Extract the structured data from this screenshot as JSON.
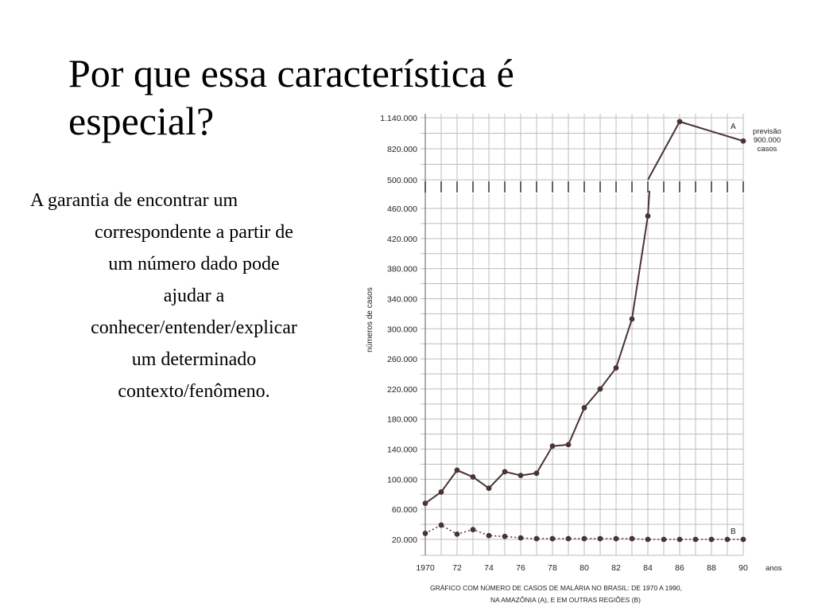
{
  "slide": {
    "title_line1": "Por que essa característica é",
    "title_line2": "especial?",
    "bullet_first": "A garantia de encontrar um",
    "bullet_lines": [
      "correspondente a partir de",
      "um número dado pode",
      "ajudar a",
      "conhecer/entender/explicar",
      "um determinado",
      "contexto/fenômeno."
    ]
  },
  "chart_data": {
    "type": "line",
    "ylabel": "números de casos",
    "x_unit_label": "anos",
    "x_tick_labels": [
      "1970",
      "72",
      "74",
      "76",
      "78",
      "80",
      "82",
      "84",
      "86",
      "88",
      "90"
    ],
    "y_tick_labels_top": [
      "1.140.000",
      "820.000",
      "500.000"
    ],
    "y_tick_labels_main": [
      "460.000",
      "420.000",
      "380.000",
      "340.000",
      "300.000",
      "260.000",
      "220.000",
      "180.000",
      "140.000",
      "100.000",
      "60.000",
      "20.000"
    ],
    "ylim_main": [
      20000,
      460000
    ],
    "ylim_top": [
      500000,
      1140000
    ],
    "axis_break_at": 500000,
    "xlim": [
      1970,
      1990
    ],
    "grid": true,
    "forecast_note": [
      "previsão",
      "900.000",
      "casos"
    ],
    "caption_line1": "GRÁFICO COM NÚMERO DE CASOS DE MALÁRIA NO BRASIL: DE 1970 A 1990,",
    "caption_line2": "NA AMAZÔNIA (A), E EM OUTRAS REGIÕES (B)",
    "series": [
      {
        "name": "A",
        "style": "solid",
        "color": "#4a3432",
        "x": [
          1970,
          1971,
          1972,
          1973,
          1974,
          1975,
          1976,
          1977,
          1978,
          1979,
          1980,
          1981,
          1982,
          1983,
          1984,
          1986,
          1990
        ],
        "values": [
          68000,
          83000,
          112000,
          103000,
          88000,
          110000,
          105000,
          108000,
          144000,
          146000,
          195000,
          220000,
          248000,
          313000,
          450000,
          1100000,
          900000
        ]
      },
      {
        "name": "B",
        "style": "dotted",
        "color": "#4a3432",
        "x": [
          1970,
          1971,
          1972,
          1973,
          1974,
          1975,
          1976,
          1977,
          1978,
          1979,
          1980,
          1981,
          1982,
          1983,
          1984,
          1985,
          1986,
          1987,
          1988,
          1989,
          1990
        ],
        "values": [
          28000,
          39000,
          27000,
          33000,
          25000,
          24000,
          22000,
          21000,
          21000,
          21000,
          21000,
          21000,
          21000,
          21000,
          20000,
          20000,
          20000,
          20000,
          20000,
          20000,
          20000
        ]
      }
    ]
  }
}
